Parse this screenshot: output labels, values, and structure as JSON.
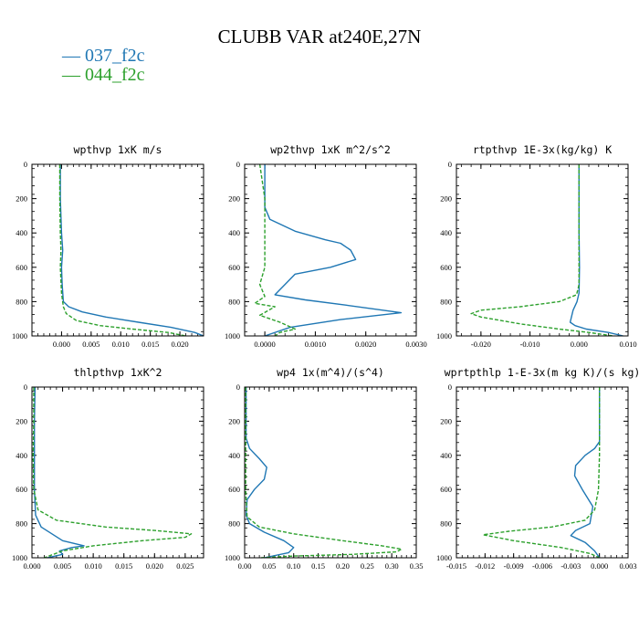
{
  "title": "CLUBB VAR at240E,27N",
  "legend": [
    {
      "label": "— 037_f2c",
      "color": "#1f77b4"
    },
    {
      "label": "— 044_f2c",
      "color": "#2ca02c"
    }
  ],
  "chart_data": [
    {
      "type": "line",
      "title": "wpthvp   1xK m/s",
      "ylim": [
        0,
        1000
      ],
      "yticks": [
        "0",
        "200",
        "400",
        "600",
        "800",
        "1000"
      ],
      "xlim": [
        -0.005,
        0.024
      ],
      "xticks": [
        {
          "v": 0.0,
          "l": "0.000"
        },
        {
          "v": 0.005,
          "l": "0.005"
        },
        {
          "v": 0.01,
          "l": "0.010"
        },
        {
          "v": 0.015,
          "l": "0.015"
        },
        {
          "v": 0.02,
          "l": "0.020"
        }
      ],
      "series": [
        {
          "name": "037_f2c",
          "color": "#1f77b4",
          "dash": false,
          "x": [
            -0.0002,
            -0.0002,
            0.0,
            0.0002,
            0.0,
            0.0001,
            0.0003,
            0.0012,
            0.0035,
            0.0075,
            0.013,
            0.0185,
            0.0225,
            0.024
          ],
          "y": [
            0,
            200,
            400,
            500,
            600,
            700,
            800,
            830,
            860,
            890,
            920,
            950,
            980,
            1000
          ]
        },
        {
          "name": "044_f2c",
          "color": "#2ca02c",
          "dash": true,
          "x": [
            -0.0003,
            -0.0003,
            -0.0002,
            -0.0001,
            -0.0002,
            0.0,
            0.0003,
            0.0008,
            0.0025,
            0.0065,
            0.012,
            0.018,
            0.021
          ],
          "y": [
            0,
            200,
            400,
            500,
            600,
            750,
            830,
            870,
            910,
            940,
            960,
            980,
            1000
          ]
        }
      ]
    },
    {
      "type": "line",
      "title": "wp2thvp   1xK m^2/s^2",
      "ylim": [
        0,
        1000
      ],
      "yticks": [
        "0",
        "200",
        "400",
        "600",
        "800",
        "1000"
      ],
      "xlim": [
        -0.0004,
        0.003
      ],
      "xticks": [
        {
          "v": 0.0,
          "l": "0.0000"
        },
        {
          "v": 0.001,
          "l": "0.0010"
        },
        {
          "v": 0.002,
          "l": "0.0020"
        },
        {
          "v": 0.003,
          "l": "0.0030"
        }
      ],
      "series": [
        {
          "name": "037_f2c",
          "color": "#1f77b4",
          "dash": false,
          "x": [
            0.0,
            0.0,
            0.0001,
            0.0006,
            0.0012,
            0.0015,
            0.0017,
            0.0018,
            0.0013,
            0.0006,
            0.0004,
            0.0002,
            0.0008,
            0.0016,
            0.0027,
            0.0015,
            0.0005,
            0.0
          ],
          "y": [
            0,
            250,
            320,
            390,
            440,
            460,
            500,
            555,
            600,
            640,
            700,
            760,
            790,
            820,
            865,
            905,
            950,
            1000
          ]
        },
        {
          "name": "044_f2c",
          "color": "#2ca02c",
          "dash": true,
          "x": [
            -0.0001,
            0.0,
            0.0,
            -0.0001,
            0.0,
            -0.0002,
            0.0002,
            -0.0001,
            0.0003,
            0.0006,
            0.0003,
            0.0002
          ],
          "y": [
            0,
            200,
            600,
            700,
            770,
            810,
            830,
            880,
            920,
            960,
            980,
            1000
          ]
        }
      ]
    },
    {
      "type": "line",
      "title": "rtpthvp   1E-3x(kg/kg) K",
      "ylim": [
        0,
        1000
      ],
      "yticks": [
        "0",
        "200",
        "400",
        "600",
        "800",
        "1000"
      ],
      "xlim": [
        -0.025,
        0.01
      ],
      "xticks": [
        {
          "v": -0.02,
          "l": "-0.020"
        },
        {
          "v": -0.01,
          "l": "-0.010"
        },
        {
          "v": 0.0,
          "l": "0.000"
        },
        {
          "v": 0.01,
          "l": "0.010"
        }
      ],
      "series": [
        {
          "name": "037_f2c",
          "color": "#1f77b4",
          "dash": false,
          "x": [
            0.0,
            0.0,
            0.0001,
            0.0,
            -0.0004,
            -0.0012,
            -0.0018,
            -0.0008,
            0.0015,
            0.006,
            0.009
          ],
          "y": [
            0,
            400,
            600,
            750,
            800,
            850,
            920,
            940,
            960,
            980,
            1000
          ]
        },
        {
          "name": "044_f2c",
          "color": "#2ca02c",
          "dash": true,
          "x": [
            0.0,
            0.0,
            0.0,
            -0.0005,
            -0.004,
            -0.012,
            -0.02,
            -0.022,
            -0.02,
            -0.012,
            -0.004,
            0.002,
            0.007
          ],
          "y": [
            0,
            400,
            700,
            760,
            800,
            830,
            850,
            870,
            890,
            930,
            960,
            980,
            1000
          ]
        }
      ]
    },
    {
      "type": "line",
      "title": "thlpthvp   1xK^2",
      "ylim": [
        0,
        1000
      ],
      "yticks": [
        "0",
        "200",
        "400",
        "600",
        "800",
        "1000"
      ],
      "xlim": [
        0,
        0.028
      ],
      "xticks": [
        {
          "v": 0.0,
          "l": "0.000"
        },
        {
          "v": 0.005,
          "l": "0.005"
        },
        {
          "v": 0.01,
          "l": "0.010"
        },
        {
          "v": 0.015,
          "l": "0.015"
        },
        {
          "v": 0.02,
          "l": "0.020"
        },
        {
          "v": 0.025,
          "l": "0.025"
        }
      ],
      "series": [
        {
          "name": "037_f2c",
          "color": "#1f77b4",
          "dash": false,
          "x": [
            0.0005,
            0.0004,
            0.0004,
            0.0004,
            0.0006,
            0.0015,
            0.005,
            0.0085,
            0.0065,
            0.0045,
            0.005,
            0.0025
          ],
          "y": [
            0,
            200,
            400,
            600,
            750,
            820,
            900,
            930,
            940,
            960,
            980,
            1000
          ]
        },
        {
          "name": "044_f2c",
          "color": "#2ca02c",
          "dash": true,
          "x": [
            0.0003,
            0.0003,
            0.0002,
            0.0003,
            0.001,
            0.004,
            0.012,
            0.02,
            0.026,
            0.025,
            0.018,
            0.01,
            0.005,
            0.002
          ],
          "y": [
            0,
            200,
            400,
            600,
            720,
            780,
            820,
            840,
            860,
            880,
            900,
            930,
            960,
            1000
          ]
        }
      ]
    },
    {
      "type": "line",
      "title": "wp4   1x(m^4)/(s^4)",
      "ylim": [
        0,
        1000
      ],
      "yticks": [
        "0",
        "200",
        "400",
        "600",
        "800",
        "1000"
      ],
      "xlim": [
        0,
        0.35
      ],
      "xticks": [
        {
          "v": 0.0,
          "l": "0.00"
        },
        {
          "v": 0.05,
          "l": "0.05"
        },
        {
          "v": 0.1,
          "l": "0.10"
        },
        {
          "v": 0.15,
          "l": "0.15"
        },
        {
          "v": 0.2,
          "l": "0.20"
        },
        {
          "v": 0.25,
          "l": "0.25"
        },
        {
          "v": 0.3,
          "l": "0.30"
        },
        {
          "v": 0.35,
          "l": "0.35"
        }
      ],
      "series": [
        {
          "name": "037_f2c",
          "color": "#1f77b4",
          "dash": false,
          "x": [
            0.003,
            0.003,
            0.01,
            0.03,
            0.045,
            0.04,
            0.02,
            0.005,
            0.003,
            0.01,
            0.04,
            0.08,
            0.1,
            0.09,
            0.04
          ],
          "y": [
            0,
            300,
            360,
            420,
            470,
            540,
            600,
            660,
            750,
            800,
            850,
            900,
            940,
            970,
            1000
          ]
        },
        {
          "name": "044_f2c",
          "color": "#2ca02c",
          "dash": true,
          "x": [
            0.002,
            0.002,
            0.002,
            0.005,
            0.03,
            0.1,
            0.2,
            0.28,
            0.32,
            0.31,
            0.22,
            0.1,
            0.03
          ],
          "y": [
            0,
            300,
            600,
            760,
            820,
            860,
            900,
            930,
            950,
            965,
            980,
            990,
            1000
          ]
        }
      ]
    },
    {
      "type": "line",
      "title": "wprtpthlp   1-E-3x(m kg K)/(s kg)",
      "ylim": [
        0,
        1000
      ],
      "yticks": [
        "0",
        "200",
        "400",
        "600",
        "800",
        "1000"
      ],
      "xlim": [
        -0.015,
        0.003
      ],
      "xticks": [
        {
          "v": -0.015,
          "l": "-0.015"
        },
        {
          "v": -0.012,
          "l": "-0.012"
        },
        {
          "v": -0.009,
          "l": "-0.009"
        },
        {
          "v": -0.006,
          "l": "-0.006"
        },
        {
          "v": -0.003,
          "l": "-0.003"
        },
        {
          "v": 0.0,
          "l": "0.000"
        },
        {
          "v": 0.003,
          "l": "0.003"
        }
      ],
      "series": [
        {
          "name": "037_f2c",
          "color": "#1f77b4",
          "dash": false,
          "x": [
            0.0,
            0.0,
            -0.0005,
            -0.0015,
            -0.0025,
            -0.0026,
            -0.0018,
            -0.0007,
            -0.001,
            -0.0025,
            -0.003,
            -0.0015,
            -0.0005,
            0.0
          ],
          "y": [
            0,
            320,
            360,
            400,
            460,
            520,
            600,
            700,
            800,
            840,
            870,
            910,
            960,
            1000
          ]
        },
        {
          "name": "044_f2c",
          "color": "#2ca02c",
          "dash": true,
          "x": [
            0.0,
            0.0,
            -0.0001,
            -0.0005,
            -0.0015,
            -0.005,
            -0.0095,
            -0.0122,
            -0.009,
            -0.004,
            -0.001,
            0.0
          ],
          "y": [
            0,
            400,
            600,
            720,
            780,
            820,
            845,
            865,
            900,
            940,
            975,
            1000
          ]
        }
      ]
    }
  ]
}
